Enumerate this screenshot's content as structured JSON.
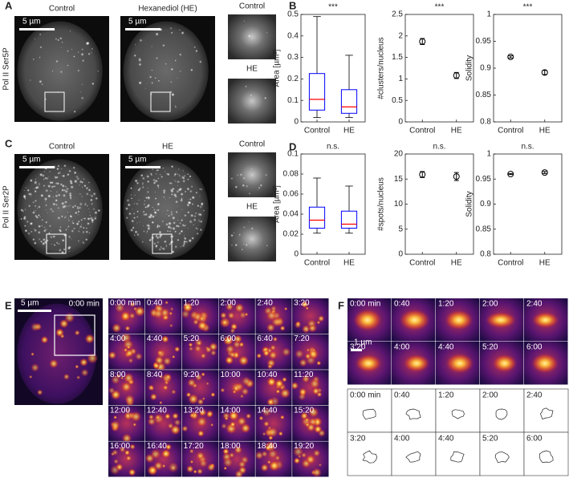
{
  "panel_letters": [
    "A",
    "B",
    "C",
    "D",
    "E",
    "F"
  ],
  "panel_a": {
    "row_label": "Pol II Ser5P",
    "image_titles": [
      "Control",
      "Hexanediol (HE)"
    ],
    "scale_bar": "5 µm",
    "inset_labels": [
      "Control",
      "HE"
    ]
  },
  "panel_c": {
    "row_label": "Pol II Ser2P",
    "image_titles": [
      "Control",
      "HE"
    ],
    "scale_bar": "5 µm",
    "inset_labels": [
      "Control",
      "HE"
    ]
  },
  "panel_e": {
    "scale_bar": "5 µm",
    "overview_time": "0:00 min",
    "frame_times": [
      "0:00 min",
      "0:40",
      "1:20",
      "2:00",
      "2:40",
      "3:20",
      "4:00",
      "4:40",
      "5:20",
      "6:00",
      "6:40",
      "7:20",
      "8:00",
      "8:40",
      "9:20",
      "10:00",
      "10:40",
      "11:20",
      "12:00",
      "12:40",
      "13:20",
      "14:00",
      "14:40",
      "15:20",
      "16:00",
      "16:40",
      "17:20",
      "18:00",
      "18:40",
      "19:20"
    ]
  },
  "panel_f": {
    "scale_bar": "1 µm",
    "frame_times": [
      "0:00 min",
      "0:40",
      "1:20",
      "2:00",
      "2:40",
      "3:20",
      "4:00",
      "4:40",
      "5:20",
      "6:00"
    ]
  },
  "chart_data": [
    {
      "type": "box",
      "title": "***",
      "ylabel": "Area [µm²]",
      "categories": [
        "Control",
        "HE"
      ],
      "whisker_low": [
        0.02,
        0.02
      ],
      "q1": [
        0.055,
        0.04
      ],
      "median": [
        0.105,
        0.07
      ],
      "q3": [
        0.225,
        0.15
      ],
      "whisker_high": [
        0.49,
        0.31
      ],
      "box_color": "#0000ff",
      "median_color": "#ff0000",
      "ylim": [
        0,
        0.5
      ],
      "yticks": [
        0,
        0.1,
        0.2,
        0.3,
        0.4,
        0.5
      ]
    },
    {
      "type": "errorbar",
      "title": "***",
      "ylabel": "#clusters/nucleus",
      "categories": [
        "Control",
        "HE"
      ],
      "values": [
        1.87,
        1.08
      ],
      "errors": [
        0.07,
        0.07
      ],
      "color": "#000000",
      "ylim": [
        0,
        2.5
      ],
      "yticks": [
        0,
        0.5,
        1,
        1.5,
        2,
        2.5
      ]
    },
    {
      "type": "errorbar",
      "title": "***",
      "ylabel": "Solidity",
      "categories": [
        "Control",
        "HE"
      ],
      "values": [
        0.921,
        0.892
      ],
      "errors": [
        0.002,
        0.004
      ],
      "color": "#000000",
      "ylim": [
        0.8,
        1
      ],
      "yticks": [
        0.8,
        0.85,
        0.9,
        0.95,
        1
      ]
    },
    {
      "type": "box",
      "title": "n.s.",
      "ylabel": "Area [µm²]",
      "categories": [
        "Control",
        "HE"
      ],
      "whisker_low": [
        0.021,
        0.021
      ],
      "q1": [
        0.026,
        0.026
      ],
      "median": [
        0.034,
        0.03
      ],
      "q3": [
        0.047,
        0.043
      ],
      "whisker_high": [
        0.076,
        0.068
      ],
      "box_color": "#0000ff",
      "median_color": "#ff0000",
      "ylim": [
        0,
        0.1
      ],
      "yticks": [
        0,
        0.02,
        0.04,
        0.06,
        0.08,
        0.1
      ]
    },
    {
      "type": "errorbar",
      "title": "n.s.",
      "ylabel": "#spots/nucleus",
      "categories": [
        "Control",
        "HE"
      ],
      "values": [
        15.9,
        15.5
      ],
      "errors": [
        0.6,
        0.8
      ],
      "color": "#000000",
      "ylim": [
        0,
        20
      ],
      "yticks": [
        0,
        5,
        10,
        15,
        20
      ]
    },
    {
      "type": "errorbar",
      "title": "n.s.",
      "ylabel": "Solidity",
      "categories": [
        "Control",
        "HE"
      ],
      "values": [
        0.96,
        0.963
      ],
      "errors": [
        0.001,
        0.002
      ],
      "color": "#000000",
      "ylim": [
        0.8,
        1
      ],
      "yticks": [
        0.8,
        0.85,
        0.9,
        0.95,
        1
      ]
    }
  ]
}
